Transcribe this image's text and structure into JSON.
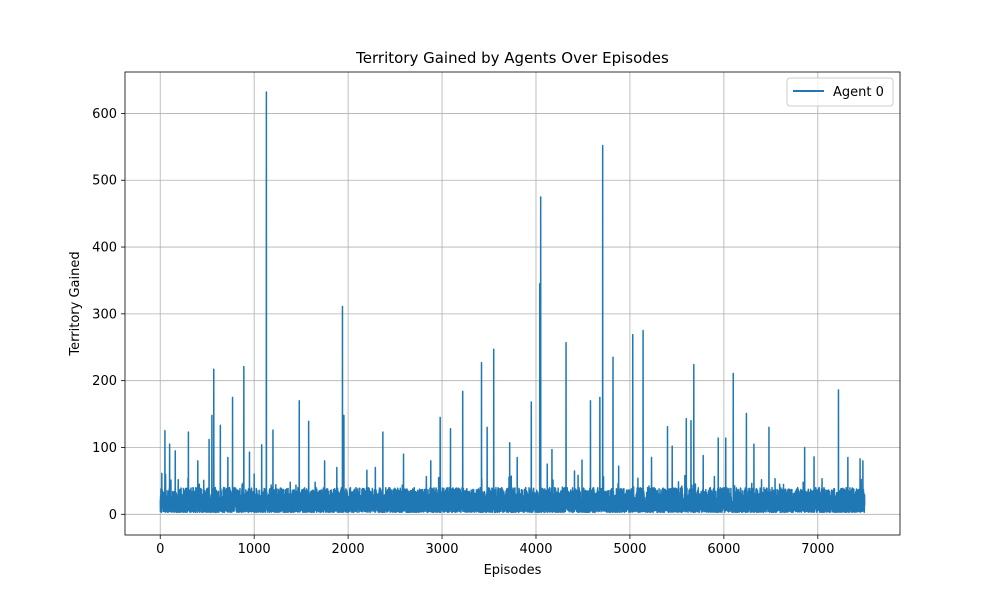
{
  "chart_data": {
    "type": "line",
    "title": "Territory Gained by Agents Over Episodes",
    "xlabel": "Episodes",
    "ylabel": "Territory Gained",
    "xlim": [
      -375,
      7875
    ],
    "ylim": [
      -31,
      662
    ],
    "xticks": [
      0,
      1000,
      2000,
      3000,
      4000,
      5000,
      6000,
      7000
    ],
    "yticks": [
      0,
      100,
      200,
      300,
      400,
      500,
      600
    ],
    "grid": true,
    "legend_position": "top-right",
    "series": [
      {
        "name": "Agent 0",
        "color": "#1f77b4",
        "n_episodes": 7500,
        "baseline_range": [
          3,
          40
        ],
        "peaks": [
          [
            50,
            125
          ],
          [
            100,
            105
          ],
          [
            160,
            95
          ],
          [
            300,
            123
          ],
          [
            400,
            80
          ],
          [
            520,
            112
          ],
          [
            550,
            148
          ],
          [
            570,
            217
          ],
          [
            640,
            133
          ],
          [
            720,
            85
          ],
          [
            770,
            175
          ],
          [
            890,
            221
          ],
          [
            950,
            93
          ],
          [
            1080,
            104
          ],
          [
            1130,
            632
          ],
          [
            1200,
            126
          ],
          [
            1480,
            170
          ],
          [
            1580,
            139
          ],
          [
            1750,
            80
          ],
          [
            1880,
            70
          ],
          [
            1940,
            311
          ],
          [
            1955,
            148
          ],
          [
            2200,
            66
          ],
          [
            2290,
            70
          ],
          [
            2370,
            123
          ],
          [
            2590,
            90
          ],
          [
            2880,
            80
          ],
          [
            2980,
            145
          ],
          [
            3090,
            128
          ],
          [
            3220,
            184
          ],
          [
            3420,
            227
          ],
          [
            3480,
            130
          ],
          [
            3550,
            247
          ],
          [
            3720,
            107
          ],
          [
            3800,
            85
          ],
          [
            3950,
            168
          ],
          [
            4040,
            345
          ],
          [
            4050,
            475
          ],
          [
            4120,
            75
          ],
          [
            4170,
            97
          ],
          [
            4320,
            257
          ],
          [
            4490,
            81
          ],
          [
            4580,
            170
          ],
          [
            4680,
            175
          ],
          [
            4710,
            552
          ],
          [
            4820,
            235
          ],
          [
            4880,
            72
          ],
          [
            5030,
            269
          ],
          [
            5140,
            275
          ],
          [
            5230,
            85
          ],
          [
            5400,
            131
          ],
          [
            5450,
            102
          ],
          [
            5600,
            143
          ],
          [
            5650,
            140
          ],
          [
            5680,
            224
          ],
          [
            5780,
            88
          ],
          [
            5940,
            114
          ],
          [
            6020,
            114
          ],
          [
            6100,
            211
          ],
          [
            6240,
            151
          ],
          [
            6320,
            105
          ],
          [
            6480,
            130
          ],
          [
            6860,
            100
          ],
          [
            6960,
            86
          ],
          [
            7220,
            186
          ],
          [
            7320,
            85
          ],
          [
            7450,
            83
          ],
          [
            7480,
            80
          ]
        ]
      }
    ]
  }
}
